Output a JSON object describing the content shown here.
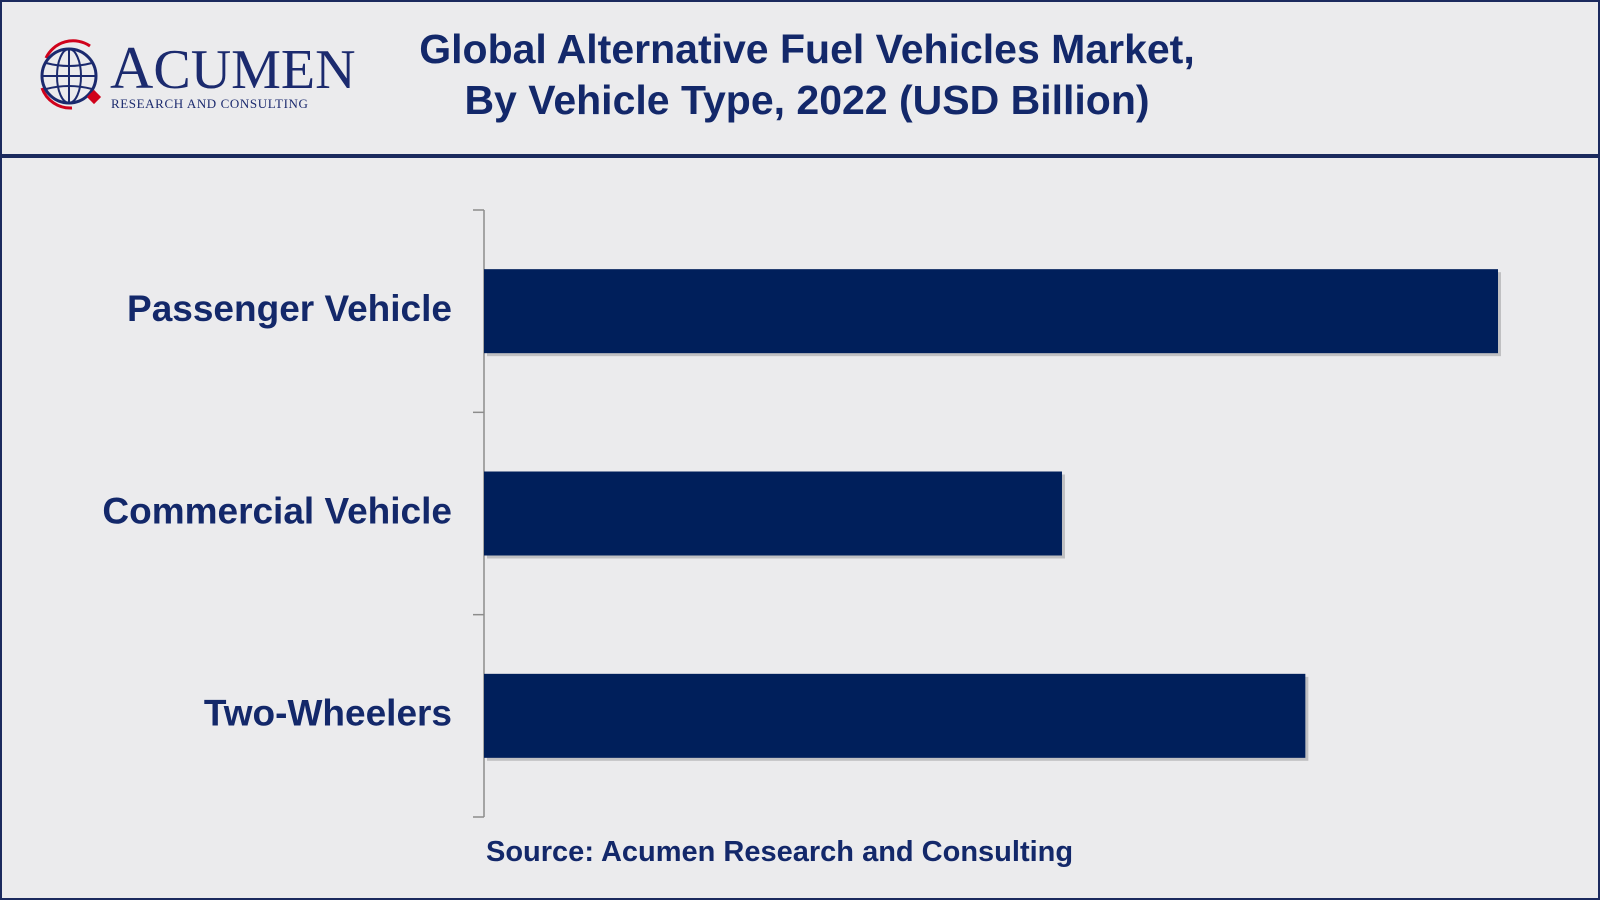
{
  "brand": {
    "logo_initial": "A",
    "logo_rest": "CUMEN",
    "logo_subtitle": "RESEARCH AND CONSULTING",
    "primary_color": "#13286a",
    "bar_color": "#001f5b",
    "accent_color": "#d0021b"
  },
  "header": {
    "title_line1": "Global Alternative Fuel Vehicles Market,",
    "title_line2": "By Vehicle Type, 2022 (USD Billion)"
  },
  "chart_data": {
    "type": "bar",
    "orientation": "horizontal",
    "title": "Global Alternative Fuel Vehicles Market, By Vehicle Type, 2022 (USD Billion)",
    "categories": [
      "Passenger Vehicle",
      "Commercial Vehicle",
      "Two-Wheelers"
    ],
    "values": [
      100,
      57,
      81
    ],
    "xlim": [
      0,
      100
    ],
    "xlabel": "",
    "ylabel": "",
    "grid": false,
    "value_labels_shown": false
  },
  "footer": {
    "source": "Source: Acumen Research and Consulting"
  }
}
